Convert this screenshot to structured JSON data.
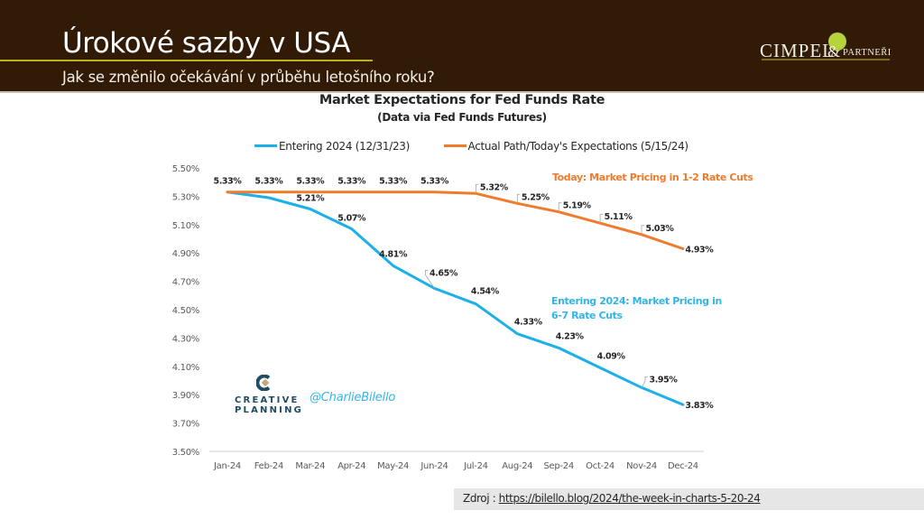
{
  "slide": {
    "title": "Úrokové sazby v USA",
    "subtitle": "Jak se změnilo očekávání v průběhu letošního roku?",
    "logo": {
      "name_main": "CIMPEL",
      "ampersand": "&",
      "name_partner": "PARTNEŘI",
      "icon": "leaf-icon"
    },
    "source_label": "Zdroj : ",
    "source_link": "https://bilello.blog/2024/the-week-in-charts-5-20-24",
    "watermark_logo": {
      "line1": "CREATIVE",
      "line2": "PLANNING"
    },
    "watermark_handle": "@CharlieBilello"
  },
  "colors": {
    "header_bg": "#311b07",
    "accent_rule": "#b9b21d",
    "series_entering": "#1cb0e8",
    "series_today": "#ef7b2d",
    "annotation_entering": "#33b4e8",
    "annotation_today": "#ef7b2d"
  },
  "chart_data": {
    "type": "line",
    "title": "Market Expectations for Fed Funds Rate",
    "subtitle": "(Data via Fed Funds Futures)",
    "xlabel": "",
    "ylabel": "",
    "categories": [
      "Jan-24",
      "Feb-24",
      "Mar-24",
      "Apr-24",
      "May-24",
      "Jun-24",
      "Jul-24",
      "Aug-24",
      "Sep-24",
      "Oct-24",
      "Nov-24",
      "Dec-24"
    ],
    "ylim": [
      3.5,
      5.5
    ],
    "yticks": [
      3.5,
      3.7,
      3.9,
      4.1,
      4.3,
      4.5,
      4.7,
      4.9,
      5.1,
      5.3,
      5.5
    ],
    "ytick_labels": [
      "3.50%",
      "3.70%",
      "3.90%",
      "4.10%",
      "4.30%",
      "4.50%",
      "4.70%",
      "4.90%",
      "5.10%",
      "5.30%",
      "5.50%"
    ],
    "grid": false,
    "legend_position": "top",
    "series": [
      {
        "name": "Entering 2024 (12/31/23)",
        "values": [
          5.33,
          5.29,
          5.21,
          5.07,
          4.81,
          4.65,
          4.54,
          4.33,
          4.23,
          4.09,
          3.95,
          3.83
        ],
        "data_labels": [
          null,
          null,
          "5.21%",
          "5.07%",
          "4.81%",
          "4.65%",
          "4.54%",
          "4.33%",
          "4.23%",
          "4.09%",
          "3.95%",
          "3.83%"
        ]
      },
      {
        "name": "Actual Path/Today's Expectations (5/15/24)",
        "values": [
          5.33,
          5.33,
          5.33,
          5.33,
          5.33,
          5.33,
          5.32,
          5.25,
          5.19,
          5.11,
          5.03,
          4.93
        ],
        "data_labels": [
          "5.33%",
          "5.33%",
          "5.33%",
          "5.33%",
          "5.33%",
          "5.33%",
          "5.32%",
          "5.25%",
          "5.19%",
          "5.11%",
          "5.03%",
          "4.93%"
        ]
      }
    ],
    "annotations": [
      {
        "text": "Today:  Market Pricing in 1-2 Rate Cuts",
        "series": "Actual Path/Today's Expectations (5/15/24)"
      },
      {
        "text": "Entering 2024: Market Pricing in",
        "text2": " 6-7 Rate Cuts",
        "series": "Entering 2024 (12/31/23)"
      }
    ]
  }
}
